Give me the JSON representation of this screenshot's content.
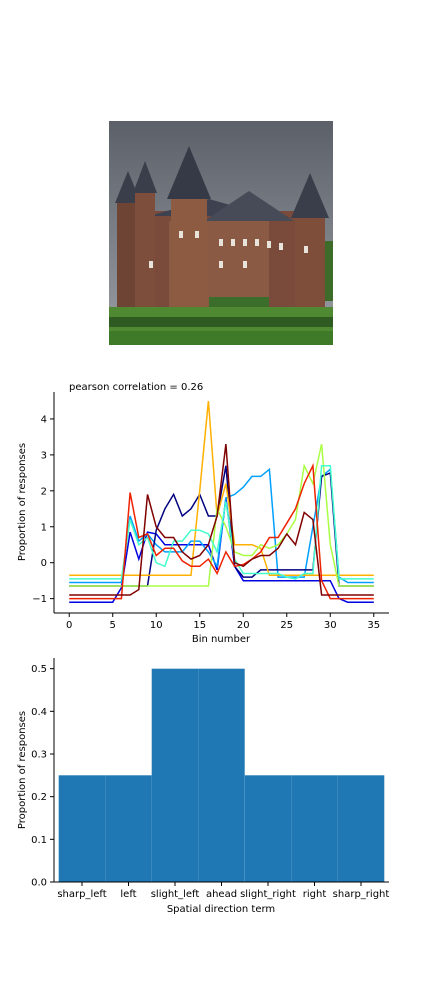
{
  "figure": {
    "photo_subject": "castle"
  },
  "chart_data": [
    {
      "type": "line",
      "title": "pearson correlation = 0.26",
      "xlabel": "Bin number",
      "ylabel": "Proportion of responses",
      "xlim": [
        -1.75,
        36.75
      ],
      "ylim": [
        -1.4,
        4.75
      ],
      "xticks": [
        0,
        5,
        10,
        15,
        20,
        25,
        30,
        35
      ],
      "yticks": [
        -1,
        0,
        1,
        2,
        3,
        4
      ],
      "grid": false,
      "legend": "none",
      "x": [
        0,
        1,
        2,
        3,
        4,
        5,
        6,
        7,
        8,
        9,
        10,
        11,
        12,
        13,
        14,
        15,
        16,
        17,
        18,
        19,
        20,
        21,
        22,
        23,
        24,
        25,
        26,
        27,
        28,
        29,
        30,
        31,
        32,
        33,
        34,
        35
      ],
      "series": [
        {
          "color": "#0000e0",
          "values": [
            -1.1,
            -1.1,
            -1.1,
            -1.1,
            -1.1,
            -1.1,
            -0.7,
            0.85,
            0.1,
            0.85,
            0.8,
            0.5,
            0.5,
            0.5,
            0.5,
            0.5,
            0.5,
            -0.2,
            1.8,
            -0.1,
            -0.5,
            -0.5,
            -0.5,
            -0.5,
            -0.5,
            -0.5,
            -0.5,
            -0.5,
            -0.5,
            -0.5,
            -0.5,
            -1.0,
            -1.1,
            -1.1,
            -1.1,
            -1.1
          ]
        },
        {
          "color": "#00a0ff",
          "values": [
            -0.55,
            -0.55,
            -0.55,
            -0.55,
            -0.55,
            -0.55,
            -0.55,
            1.3,
            0.6,
            0.8,
            0.5,
            0.3,
            0.3,
            0.3,
            0.6,
            0.6,
            0.3,
            -0.1,
            1.8,
            1.9,
            2.1,
            2.4,
            2.4,
            2.6,
            -0.4,
            -0.4,
            -0.4,
            -0.4,
            1.0,
            2.4,
            2.6,
            -0.4,
            -0.55,
            -0.55,
            -0.55,
            -0.55
          ]
        },
        {
          "color": "#000080",
          "values": [
            -0.65,
            -0.65,
            -0.65,
            -0.65,
            -0.65,
            -0.65,
            -0.65,
            -0.65,
            -0.65,
            -0.65,
            0.9,
            1.5,
            1.9,
            1.3,
            1.5,
            1.9,
            1.3,
            1.3,
            2.7,
            -0.1,
            -0.4,
            -0.4,
            -0.2,
            -0.2,
            -0.2,
            -0.2,
            -0.2,
            -0.2,
            -0.2,
            2.4,
            2.5,
            -0.65,
            -0.65,
            -0.65,
            -0.65,
            -0.65
          ]
        },
        {
          "color": "#ffb000",
          "values": [
            -0.35,
            -0.35,
            -0.35,
            -0.35,
            -0.35,
            -0.35,
            -0.35,
            -0.35,
            -0.35,
            -0.35,
            -0.35,
            -0.35,
            -0.35,
            -0.35,
            -0.35,
            2.0,
            4.5,
            1.3,
            2.2,
            0.5,
            0.5,
            0.5,
            0.4,
            -0.35,
            -0.35,
            -0.35,
            -0.35,
            -0.35,
            -0.35,
            -0.35,
            -0.35,
            -0.35,
            -0.35,
            -0.35,
            -0.35,
            -0.35
          ]
        },
        {
          "color": "#aaff44",
          "values": [
            -0.65,
            -0.65,
            -0.65,
            -0.65,
            -0.65,
            -0.65,
            -0.65,
            -0.65,
            -0.65,
            -0.65,
            -0.65,
            -0.65,
            -0.65,
            -0.65,
            -0.65,
            -0.65,
            -0.65,
            1.5,
            1.0,
            0.3,
            0.2,
            0.2,
            0.5,
            0.4,
            0.5,
            0.8,
            1.2,
            2.7,
            2.2,
            3.3,
            0.5,
            -0.65,
            -0.65,
            -0.65,
            -0.65,
            -0.65
          ]
        },
        {
          "color": "#44ffcc",
          "values": [
            -0.45,
            -0.45,
            -0.45,
            -0.45,
            -0.45,
            -0.45,
            -0.45,
            1.2,
            0.5,
            0.7,
            0.0,
            -0.1,
            0.6,
            0.6,
            0.9,
            0.9,
            0.8,
            0.3,
            1.7,
            0.1,
            -0.3,
            -0.3,
            -0.3,
            -0.3,
            -0.3,
            -0.4,
            -0.45,
            -0.3,
            -0.3,
            2.7,
            2.7,
            -0.45,
            -0.45,
            -0.45,
            -0.45,
            -0.45
          ]
        },
        {
          "color": "#ee2200",
          "values": [
            -1.0,
            -1.0,
            -1.0,
            -1.0,
            -1.0,
            -1.0,
            -1.0,
            1.95,
            0.7,
            0.8,
            0.2,
            0.4,
            0.4,
            0.05,
            -0.1,
            -0.1,
            0.1,
            -0.3,
            0.3,
            -0.1,
            -0.05,
            0.1,
            0.3,
            0.7,
            0.7,
            1.1,
            1.5,
            2.2,
            2.7,
            -0.5,
            -1.0,
            -1.0,
            -1.0,
            -1.0,
            -1.0,
            -1.0
          ]
        },
        {
          "color": "#800000",
          "values": [
            -0.9,
            -0.9,
            -0.9,
            -0.9,
            -0.9,
            -0.9,
            -0.9,
            -0.9,
            -0.75,
            1.9,
            1.0,
            0.7,
            0.7,
            0.3,
            0.1,
            0.2,
            0.5,
            1.3,
            3.3,
            0.0,
            -0.1,
            0.1,
            0.2,
            0.2,
            0.4,
            0.8,
            0.5,
            1.4,
            1.2,
            -0.9,
            -0.9,
            -0.9,
            -0.9,
            -0.9,
            -0.9,
            -0.9
          ]
        }
      ]
    },
    {
      "type": "bar",
      "xlabel": "Spatial direction term",
      "ylabel": "Proportion of responses",
      "categories": [
        "sharp_left",
        "left",
        "slight_left",
        "ahead",
        "slight_right",
        "right",
        "sharp_right"
      ],
      "values": [
        0.25,
        0.25,
        0.5,
        0.5,
        0.25,
        0.25,
        0.25
      ],
      "ylim": [
        0,
        0.525
      ],
      "yticks": [
        "0.0",
        "0.1",
        "0.2",
        "0.3",
        "0.4",
        "0.5"
      ],
      "grid": false,
      "legend": "none",
      "bar_color": "#1f77b4"
    }
  ]
}
